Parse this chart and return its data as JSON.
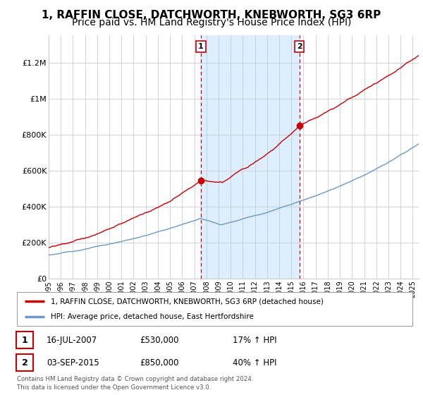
{
  "title": "1, RAFFIN CLOSE, DATCHWORTH, KNEBWORTH, SG3 6RP",
  "subtitle": "Price paid vs. HM Land Registry's House Price Index (HPI)",
  "ylabel_ticks": [
    "£0",
    "£200K",
    "£400K",
    "£600K",
    "£800K",
    "£1M",
    "£1.2M"
  ],
  "ytick_values": [
    0,
    200000,
    400000,
    600000,
    800000,
    1000000,
    1200000
  ],
  "ylim": [
    0,
    1350000
  ],
  "xlim_start": 1995.0,
  "xlim_end": 2025.5,
  "sale1_x": 2007.54,
  "sale1_y": 530000,
  "sale1_label": "1",
  "sale2_x": 2015.67,
  "sale2_y": 850000,
  "sale2_label": "2",
  "red_color": "#cc0000",
  "blue_color": "#6699cc",
  "shade_color": "#ddeeff",
  "grid_color": "#cccccc",
  "bg_color": "#ffffff",
  "legend_label_red": "1, RAFFIN CLOSE, DATCHWORTH, KNEBWORTH, SG3 6RP (detached house)",
  "legend_label_blue": "HPI: Average price, detached house, East Hertfordshire",
  "annotation1_date": "16-JUL-2007",
  "annotation1_price": "£530,000",
  "annotation1_hpi": "17% ↑ HPI",
  "annotation2_date": "03-SEP-2015",
  "annotation2_price": "£850,000",
  "annotation2_hpi": "40% ↑ HPI",
  "footnote": "Contains HM Land Registry data © Crown copyright and database right 2024.\nThis data is licensed under the Open Government Licence v3.0.",
  "title_fontsize": 11,
  "subtitle_fontsize": 10
}
